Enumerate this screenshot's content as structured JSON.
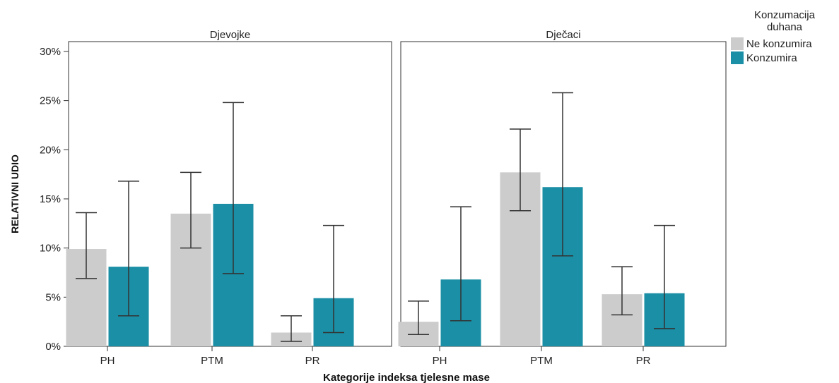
{
  "chart_data": {
    "type": "bar",
    "xlabel": "Kategorije indeksa tjelesne mase",
    "ylabel": "RELATIVNI UDIO",
    "ylim": [
      0,
      31
    ],
    "yticks": [
      "0%",
      "5%",
      "10%",
      "15%",
      "20%",
      "25%",
      "30%"
    ],
    "ytick_values": [
      0,
      5,
      10,
      15,
      20,
      25,
      30
    ],
    "categories": [
      "PH",
      "PTM",
      "PR"
    ],
    "legend": {
      "title": "Konzumacija duhana",
      "title_lines": [
        "Konzumacija",
        "duhana"
      ],
      "position": "top-right",
      "entries": [
        "Ne konzumira",
        "Konzumira"
      ]
    },
    "colors": {
      "Ne konzumira": "#cccccc",
      "Konzumira": "#1a8fa5"
    },
    "panels": [
      {
        "title": "Djevojke",
        "series": [
          {
            "name": "Ne konzumira",
            "values": [
              9.9,
              13.5,
              1.4
            ],
            "err_low": [
              6.9,
              10.0,
              0.5
            ],
            "err_high": [
              13.6,
              17.7,
              3.1
            ]
          },
          {
            "name": "Konzumira",
            "values": [
              8.1,
              14.5,
              4.9
            ],
            "err_low": [
              3.1,
              7.4,
              1.4
            ],
            "err_high": [
              16.8,
              24.8,
              12.3
            ]
          }
        ]
      },
      {
        "title": "Dječaci",
        "series": [
          {
            "name": "Ne konzumira",
            "values": [
              2.5,
              17.7,
              5.3
            ],
            "err_low": [
              1.2,
              13.8,
              3.2
            ],
            "err_high": [
              4.6,
              22.1,
              8.1
            ]
          },
          {
            "name": "Konzumira",
            "values": [
              6.8,
              16.2,
              5.4
            ],
            "err_low": [
              2.6,
              9.2,
              1.8
            ],
            "err_high": [
              14.2,
              25.8,
              12.3
            ]
          }
        ]
      }
    ]
  }
}
